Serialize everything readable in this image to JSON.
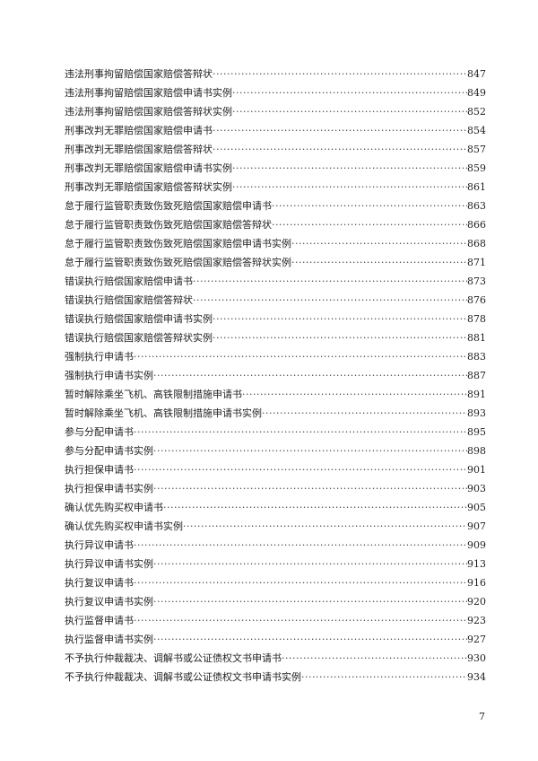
{
  "toc": [
    {
      "title": "违法刑事拘留赔偿国家赔偿答辩状",
      "page": "847"
    },
    {
      "title": "违法刑事拘留赔偿国家赔偿申请书实例",
      "page": "849"
    },
    {
      "title": "违法刑事拘留赔偿国家赔偿答辩状实例",
      "page": "852"
    },
    {
      "title": "刑事改判无罪赔偿国家赔偿申请书",
      "page": "854"
    },
    {
      "title": "刑事改判无罪赔偿国家赔偿答辩状",
      "page": "857"
    },
    {
      "title": "刑事改判无罪赔偿国家赔偿申请书实例",
      "page": "859"
    },
    {
      "title": "刑事改判无罪赔偿国家赔偿答辩状实例",
      "page": "861"
    },
    {
      "title": "怠于履行监管职责致伤致死赔偿国家赔偿申请书",
      "page": "863"
    },
    {
      "title": "怠于履行监管职责致伤致死赔偿国家赔偿答辩状",
      "page": "866"
    },
    {
      "title": "怠于履行监管职责致伤致死赔偿国家赔偿申请书实例",
      "page": "868"
    },
    {
      "title": "怠于履行监管职责致伤致死赔偿国家赔偿答辩状实例",
      "page": "871"
    },
    {
      "title": "错误执行赔偿国家赔偿申请书",
      "page": "873"
    },
    {
      "title": "错误执行赔偿国家赔偿答辩状",
      "page": "876"
    },
    {
      "title": "错误执行赔偿国家赔偿申请书实例",
      "page": "878"
    },
    {
      "title": "错误执行赔偿国家赔偿答辩状实例",
      "page": "881"
    },
    {
      "title": "强制执行申请书",
      "page": "883"
    },
    {
      "title": "强制执行申请书实例",
      "page": "887"
    },
    {
      "title": "暂时解除乘坐飞机、高铁限制措施申请书",
      "page": "891"
    },
    {
      "title": "暂时解除乘坐飞机、高铁限制措施申请书实例",
      "page": "893"
    },
    {
      "title": "参与分配申请书",
      "page": "895"
    },
    {
      "title": "参与分配申请书实例",
      "page": "898"
    },
    {
      "title": "执行担保申请书",
      "page": "901"
    },
    {
      "title": "执行担保申请书实例",
      "page": "903"
    },
    {
      "title": "确认优先购买权申请书",
      "page": "905"
    },
    {
      "title": "确认优先购买权申请书实例",
      "page": "907"
    },
    {
      "title": "执行异议申请书",
      "page": "909"
    },
    {
      "title": "执行异议申请书实例",
      "page": "913"
    },
    {
      "title": "执行复议申请书",
      "page": "916"
    },
    {
      "title": "执行复议申请书实例",
      "page": "920"
    },
    {
      "title": "执行监督申请书",
      "page": "923"
    },
    {
      "title": "执行监督申请书实例",
      "page": "927"
    },
    {
      "title": "不予执行仲裁裁决、调解书或公证债权文书申请书",
      "page": "930"
    },
    {
      "title": "不予执行仲裁裁决、调解书或公证债权文书申请书实例",
      "page": "934"
    }
  ],
  "page_number": "7"
}
